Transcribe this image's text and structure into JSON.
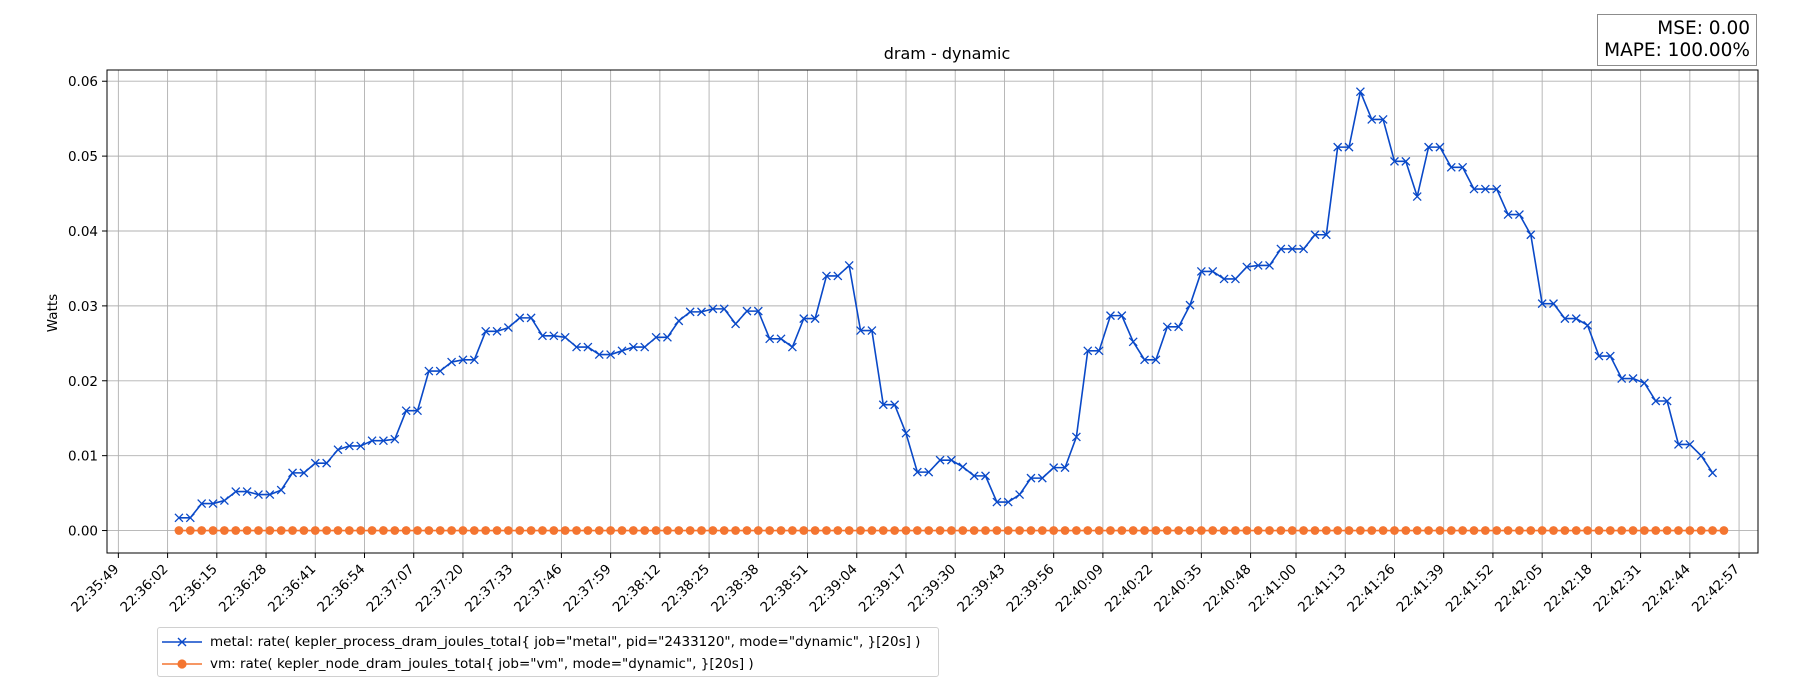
{
  "metrics": {
    "mse": "MSE: 0.00",
    "mape": "MAPE: 100.00%"
  },
  "colors": {
    "metal": "#0a49c8",
    "vm": "#f47530",
    "grid": "#b0b0b0",
    "axis": "#000000"
  },
  "chart_data": {
    "type": "line",
    "title": "dram - dynamic",
    "xlabel": "",
    "ylabel": "Watts",
    "xlim": [
      "22:35:46",
      "22:43:02"
    ],
    "ylim": [
      -0.003,
      0.0615
    ],
    "yticks": [
      0.0,
      0.01,
      0.02,
      0.03,
      0.04,
      0.05,
      0.06
    ],
    "ytick_labels": [
      "0.00",
      "0.01",
      "0.02",
      "0.03",
      "0.04",
      "0.05",
      "0.06"
    ],
    "xtick_labels": [
      "22:35:49",
      "22:36:02",
      "22:36:15",
      "22:36:28",
      "22:36:41",
      "22:36:54",
      "22:37:07",
      "22:37:20",
      "22:37:33",
      "22:37:46",
      "22:37:59",
      "22:38:12",
      "22:38:25",
      "22:38:38",
      "22:38:51",
      "22:39:04",
      "22:39:17",
      "22:39:30",
      "22:39:43",
      "22:39:56",
      "22:40:09",
      "22:40:22",
      "22:40:35",
      "22:40:48",
      "22:41:00",
      "22:41:13",
      "22:41:26",
      "22:41:39",
      "22:41:52",
      "22:42:05",
      "22:42:18",
      "22:42:31",
      "22:42:44",
      "22:42:57"
    ],
    "grid": true,
    "legend_position": "below-left",
    "x_start": "22:36:05",
    "x_step_seconds": 3,
    "series": [
      {
        "name": "metal: rate( kepler_process_dram_joules_total{ job=\"metal\", pid=\"2433120\", mode=\"dynamic\", }[20s] )",
        "marker": "x",
        "values": [
          0.0017,
          0.0017,
          0.0036,
          0.0036,
          0.004,
          0.0052,
          0.0052,
          0.0048,
          0.0048,
          0.0054,
          0.0077,
          0.0077,
          0.009,
          0.009,
          0.0108,
          0.0113,
          0.0113,
          0.012,
          0.012,
          0.0122,
          0.016,
          0.016,
          0.0213,
          0.0213,
          0.0225,
          0.0228,
          0.0228,
          0.0266,
          0.0266,
          0.0271,
          0.0284,
          0.0284,
          0.026,
          0.026,
          0.0258,
          0.0245,
          0.0245,
          0.0235,
          0.0235,
          0.024,
          0.0245,
          0.0245,
          0.0258,
          0.0258,
          0.028,
          0.0292,
          0.0292,
          0.0296,
          0.0296,
          0.0276,
          0.0293,
          0.0293,
          0.0256,
          0.0256,
          0.0245,
          0.0283,
          0.0283,
          0.034,
          0.034,
          0.0354,
          0.0267,
          0.0267,
          0.0168,
          0.0168,
          0.013,
          0.0078,
          0.0078,
          0.0094,
          0.0094,
          0.0085,
          0.0073,
          0.0073,
          0.0038,
          0.0038,
          0.0048,
          0.007,
          0.007,
          0.0084,
          0.0084,
          0.0125,
          0.024,
          0.024,
          0.0287,
          0.0287,
          0.0252,
          0.0228,
          0.0228,
          0.0272,
          0.0272,
          0.0301,
          0.0346,
          0.0346,
          0.0336,
          0.0336,
          0.0352,
          0.0354,
          0.0354,
          0.0376,
          0.0376,
          0.0376,
          0.0395,
          0.0395,
          0.0512,
          0.0512,
          0.0586,
          0.0549,
          0.0549,
          0.0493,
          0.0493,
          0.0446,
          0.0512,
          0.0512,
          0.0485,
          0.0485,
          0.0456,
          0.0456,
          0.0456,
          0.0422,
          0.0422,
          0.0395,
          0.0303,
          0.0303,
          0.0283,
          0.0283,
          0.0274,
          0.0233,
          0.0233,
          0.0203,
          0.0203,
          0.0197,
          0.0173,
          0.0173,
          0.0115,
          0.0115,
          0.01,
          0.0077
        ]
      },
      {
        "name": "vm: rate( kepler_node_dram_joules_total{ job=\"vm\", mode=\"dynamic\", }[20s] )",
        "marker": "o",
        "values": [
          0,
          0,
          0,
          0,
          0,
          0,
          0,
          0,
          0,
          0,
          0,
          0,
          0,
          0,
          0,
          0,
          0,
          0,
          0,
          0,
          0,
          0,
          0,
          0,
          0,
          0,
          0,
          0,
          0,
          0,
          0,
          0,
          0,
          0,
          0,
          0,
          0,
          0,
          0,
          0,
          0,
          0,
          0,
          0,
          0,
          0,
          0,
          0,
          0,
          0,
          0,
          0,
          0,
          0,
          0,
          0,
          0,
          0,
          0,
          0,
          0,
          0,
          0,
          0,
          0,
          0,
          0,
          0,
          0,
          0,
          0,
          0,
          0,
          0,
          0,
          0,
          0,
          0,
          0,
          0,
          0,
          0,
          0,
          0,
          0,
          0,
          0,
          0,
          0,
          0,
          0,
          0,
          0,
          0,
          0,
          0,
          0,
          0,
          0,
          0,
          0,
          0,
          0,
          0,
          0,
          0,
          0,
          0,
          0,
          0,
          0,
          0,
          0,
          0,
          0,
          0,
          0,
          0,
          0,
          0,
          0,
          0,
          0,
          0,
          0,
          0,
          0,
          0,
          0,
          0,
          0,
          0,
          0,
          0,
          0,
          0,
          0
        ]
      }
    ]
  }
}
